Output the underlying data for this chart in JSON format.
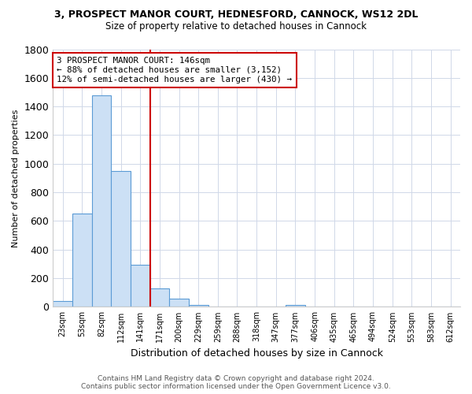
{
  "title": "3, PROSPECT MANOR COURT, HEDNESFORD, CANNOCK, WS12 2DL",
  "subtitle": "Size of property relative to detached houses in Cannock",
  "xlabel": "Distribution of detached houses by size in Cannock",
  "ylabel": "Number of detached properties",
  "annotation_line1": "3 PROSPECT MANOR COURT: 146sqm",
  "annotation_line2": "← 88% of detached houses are smaller (3,152)",
  "annotation_line3": "12% of semi-detached houses are larger (430) →",
  "categories": [
    "23sqm",
    "53sqm",
    "82sqm",
    "112sqm",
    "141sqm",
    "171sqm",
    "200sqm",
    "229sqm",
    "259sqm",
    "288sqm",
    "318sqm",
    "347sqm",
    "377sqm",
    "406sqm",
    "435sqm",
    "465sqm",
    "494sqm",
    "524sqm",
    "553sqm",
    "583sqm",
    "612sqm"
  ],
  "values": [
    40,
    650,
    1480,
    950,
    295,
    130,
    60,
    15,
    5,
    0,
    0,
    0,
    12,
    0,
    0,
    0,
    0,
    0,
    0,
    0,
    0
  ],
  "bar_color": "#cce0f5",
  "bar_edge_color": "#5b9bd5",
  "red_line_index": 4.5,
  "red_line_color": "#cc0000",
  "ylim": [
    0,
    1800
  ],
  "yticks": [
    0,
    200,
    400,
    600,
    800,
    1000,
    1200,
    1400,
    1600,
    1800
  ],
  "annotation_box_color": "#ffffff",
  "annotation_box_edge": "#cc0000",
  "grid_color": "#d0d8e8",
  "background_color": "#ffffff",
  "plot_bg_color": "#ffffff",
  "title_fontsize": 9,
  "subtitle_fontsize": 8.5,
  "footer_line1": "Contains HM Land Registry data © Crown copyright and database right 2024.",
  "footer_line2": "Contains public sector information licensed under the Open Government Licence v3.0."
}
